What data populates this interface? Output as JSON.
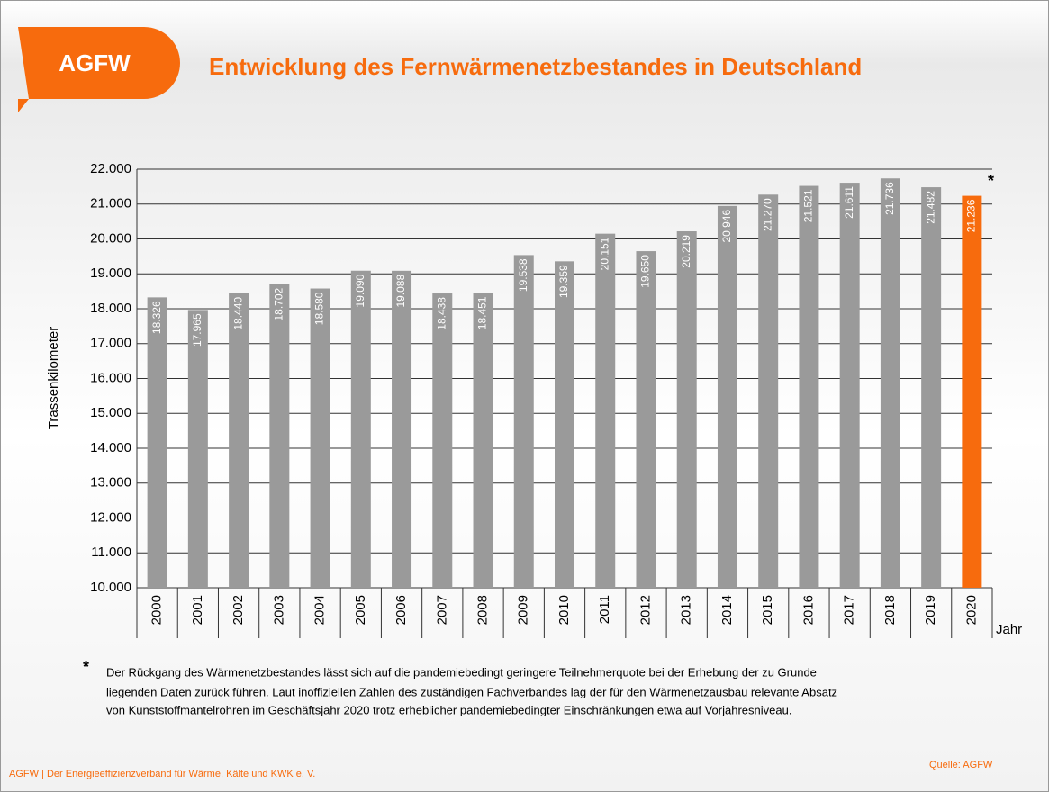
{
  "chart_data": {
    "type": "bar",
    "logo": "AGFW",
    "title": "Entwicklung des Fernwärmenetzbestandes in Deutschland",
    "y_label": "Trassenkilometer",
    "x_label": "Jahr",
    "note_marker": "*",
    "categories": [
      "2000",
      "2001",
      "2002",
      "2003",
      "2004",
      "2005",
      "2006",
      "2007",
      "2008",
      "2009",
      "2010",
      "2011",
      "2012",
      "2013",
      "2014",
      "2015",
      "2016",
      "2017",
      "2018",
      "2019",
      "2020"
    ],
    "values": [
      18326,
      17965,
      18440,
      18702,
      18580,
      19090,
      19088,
      18438,
      18451,
      19538,
      19359,
      20151,
      19650,
      20219,
      20946,
      21270,
      21521,
      21611,
      21736,
      21482,
      21236
    ],
    "value_labels": [
      "18.326",
      "17.965",
      "18.440",
      "18.702",
      "18.580",
      "19.090",
      "19.088",
      "18.438",
      "18.451",
      "19.538",
      "19.359",
      "20.151",
      "19.650",
      "20.219",
      "20.946",
      "21.270",
      "21.521",
      "21.611",
      "21.736",
      "21.482",
      "21.236"
    ],
    "colors": [
      "#9a9a9a",
      "#9a9a9a",
      "#9a9a9a",
      "#9a9a9a",
      "#9a9a9a",
      "#9a9a9a",
      "#9a9a9a",
      "#9a9a9a",
      "#9a9a9a",
      "#9a9a9a",
      "#9a9a9a",
      "#9a9a9a",
      "#9a9a9a",
      "#9a9a9a",
      "#9a9a9a",
      "#9a9a9a",
      "#9a9a9a",
      "#9a9a9a",
      "#9a9a9a",
      "#9a9a9a",
      "#f76b0d"
    ],
    "ylim": [
      10000,
      22000
    ],
    "yticks": [
      {
        "value": 10000,
        "label": "10.000"
      },
      {
        "value": 11000,
        "label": "11.000"
      },
      {
        "value": 12000,
        "label": "12.000"
      },
      {
        "value": 13000,
        "label": "13.000"
      },
      {
        "value": 14000,
        "label": "14.000"
      },
      {
        "value": 15000,
        "label": "15.000"
      },
      {
        "value": 16000,
        "label": "16.000"
      },
      {
        "value": 17000,
        "label": "17.000"
      },
      {
        "value": 18000,
        "label": "18.000"
      },
      {
        "value": 19000,
        "label": "19.000"
      },
      {
        "value": 20000,
        "label": "20.000"
      },
      {
        "value": 21000,
        "label": "21.000"
      },
      {
        "value": 22000,
        "label": "22.000"
      }
    ],
    "grid": true,
    "footnote": [
      "Der Rückgang des Wärmenetzbestandes lässt sich auf die pandemiebedingt geringere Teilnehmerquote bei der   Erhebung der zu Grunde",
      "liegenden Daten zurück führen. Laut inoffiziellen Zahlen des zuständigen Fachverbandes lag der für den Wärmenetzausbau relevante Absatz",
      "von Kunststoffmantelrohren im Geschäftsjahr 2020 trotz erheblicher pandemiebedingter Einschränkungen etwa auf Vorjahresniveau."
    ],
    "source": "Quelle: AGFW",
    "footer": "AGFW | Der Energieeffizienzverband für Wärme, Kälte und KWK e. V."
  }
}
